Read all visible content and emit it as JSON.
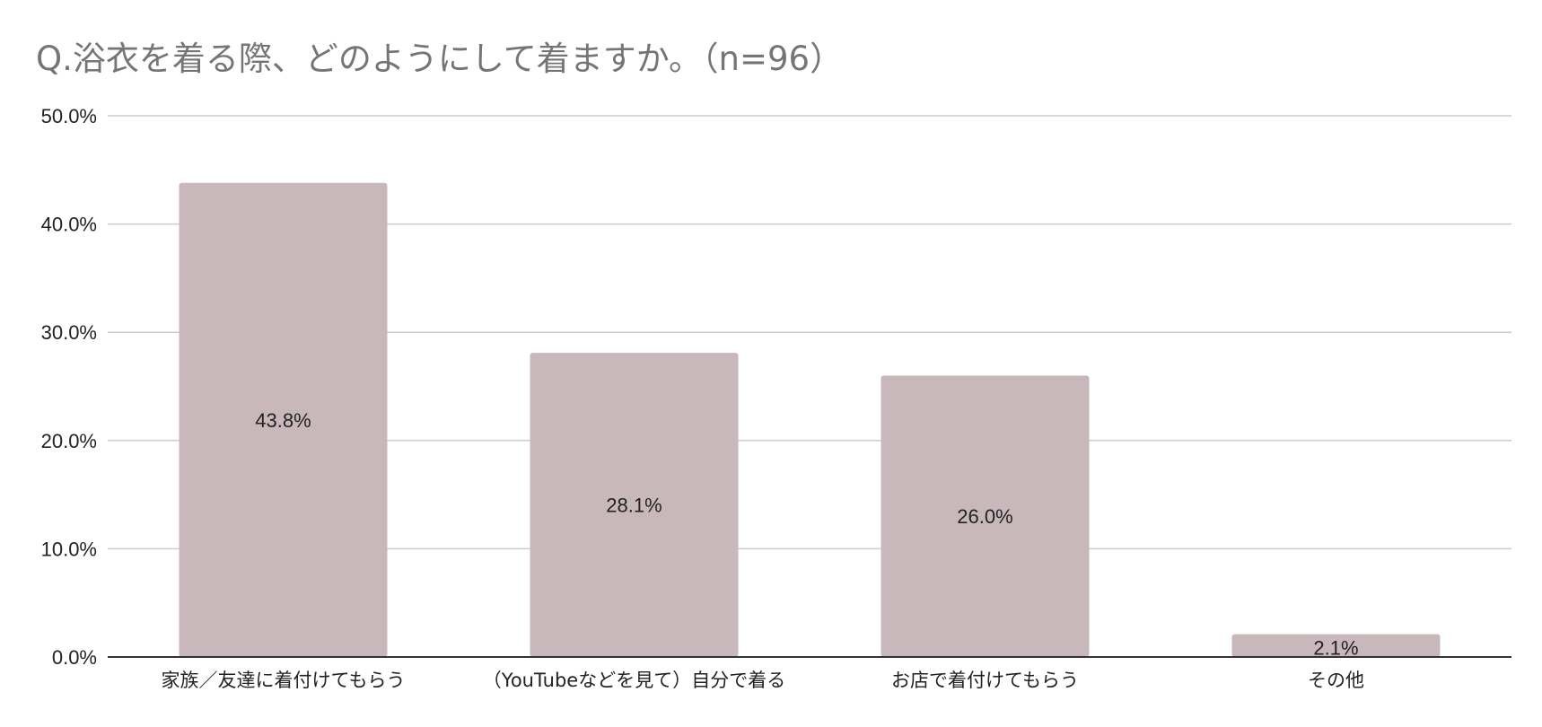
{
  "chart_data": {
    "type": "bar",
    "title": "Q.浴衣を着る際、どのようにして着ますか。（n=96）",
    "xlabel": "",
    "ylabel": "",
    "categories": [
      "家族／友達に着付けてもらう",
      "（YouTubeなどを見て）自分で着る",
      "お店で着付けてもらう",
      "その他"
    ],
    "values": [
      43.8,
      28.1,
      26.0,
      2.1
    ],
    "data_labels": [
      "43.8%",
      "28.1%",
      "26.0%",
      "2.1%"
    ],
    "ylim": [
      0,
      50
    ],
    "yticks": [
      0,
      10,
      20,
      30,
      40,
      50
    ],
    "ytick_labels": [
      "0.0%",
      "10.0%",
      "20.0%",
      "30.0%",
      "40.0%",
      "50.0%"
    ],
    "grid": true,
    "legend": "none",
    "colors": {
      "bar": "#c8b8bb",
      "grid": "#cccccc",
      "axis": "#333333",
      "title": "#757575",
      "text": "#222222"
    }
  }
}
